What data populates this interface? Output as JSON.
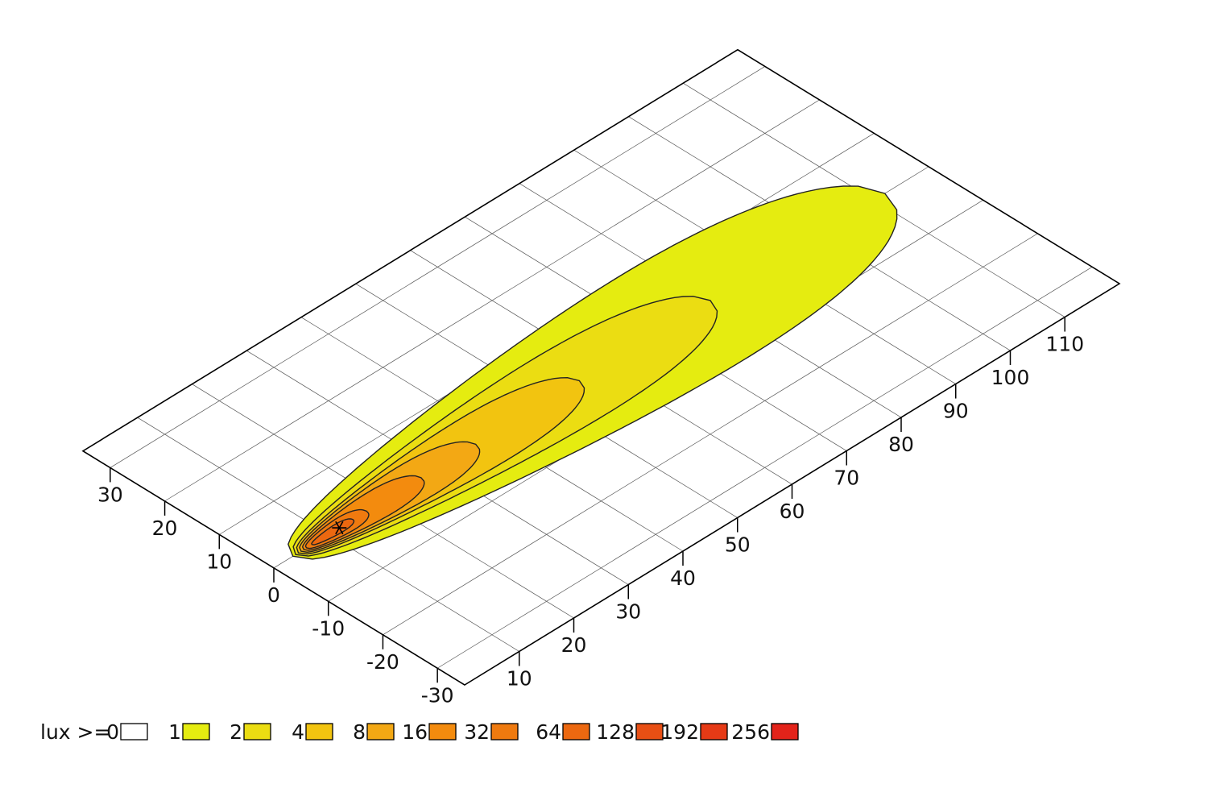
{
  "chart_data": {
    "type": "ground-contour",
    "xlim": [
      0,
      120
    ],
    "xticks": [
      10,
      20,
      30,
      40,
      50,
      60,
      70,
      80,
      90,
      100,
      110
    ],
    "ylim": [
      -35,
      35
    ],
    "yticks": [
      -30,
      -20,
      -10,
      0,
      10,
      20,
      30
    ],
    "grid": true,
    "legend_label": "lux >=",
    "levels": [
      {
        "value": 0,
        "color": "#ffffff"
      },
      {
        "value": 1,
        "color": "#e5ec10"
      },
      {
        "value": 2,
        "color": "#ebdd12"
      },
      {
        "value": 4,
        "color": "#f2c410"
      },
      {
        "value": 8,
        "color": "#f3a814"
      },
      {
        "value": 16,
        "color": "#f38b0e"
      },
      {
        "value": 32,
        "color": "#ef7a0f"
      },
      {
        "value": 64,
        "color": "#ec6810"
      },
      {
        "value": 128,
        "color": "#e84f14"
      },
      {
        "value": 192,
        "color": "#e63a16"
      },
      {
        "value": 256,
        "color": "#e3231a"
      }
    ],
    "source": {
      "x": 12,
      "y": 0
    },
    "regions": [
      {
        "start": 3.5,
        "end": 112,
        "half_width": 16
      },
      {
        "start": 4,
        "end": 80,
        "half_width": 10
      },
      {
        "start": 4.5,
        "end": 56,
        "half_width": 7
      },
      {
        "start": 5,
        "end": 37,
        "half_width": 5
      },
      {
        "start": 5.5,
        "end": 27,
        "half_width": 3.6
      },
      {
        "start": 6,
        "end": 17,
        "half_width": 2.2
      },
      {
        "start": 7,
        "end": 14.5,
        "half_width": 1.2
      }
    ]
  }
}
